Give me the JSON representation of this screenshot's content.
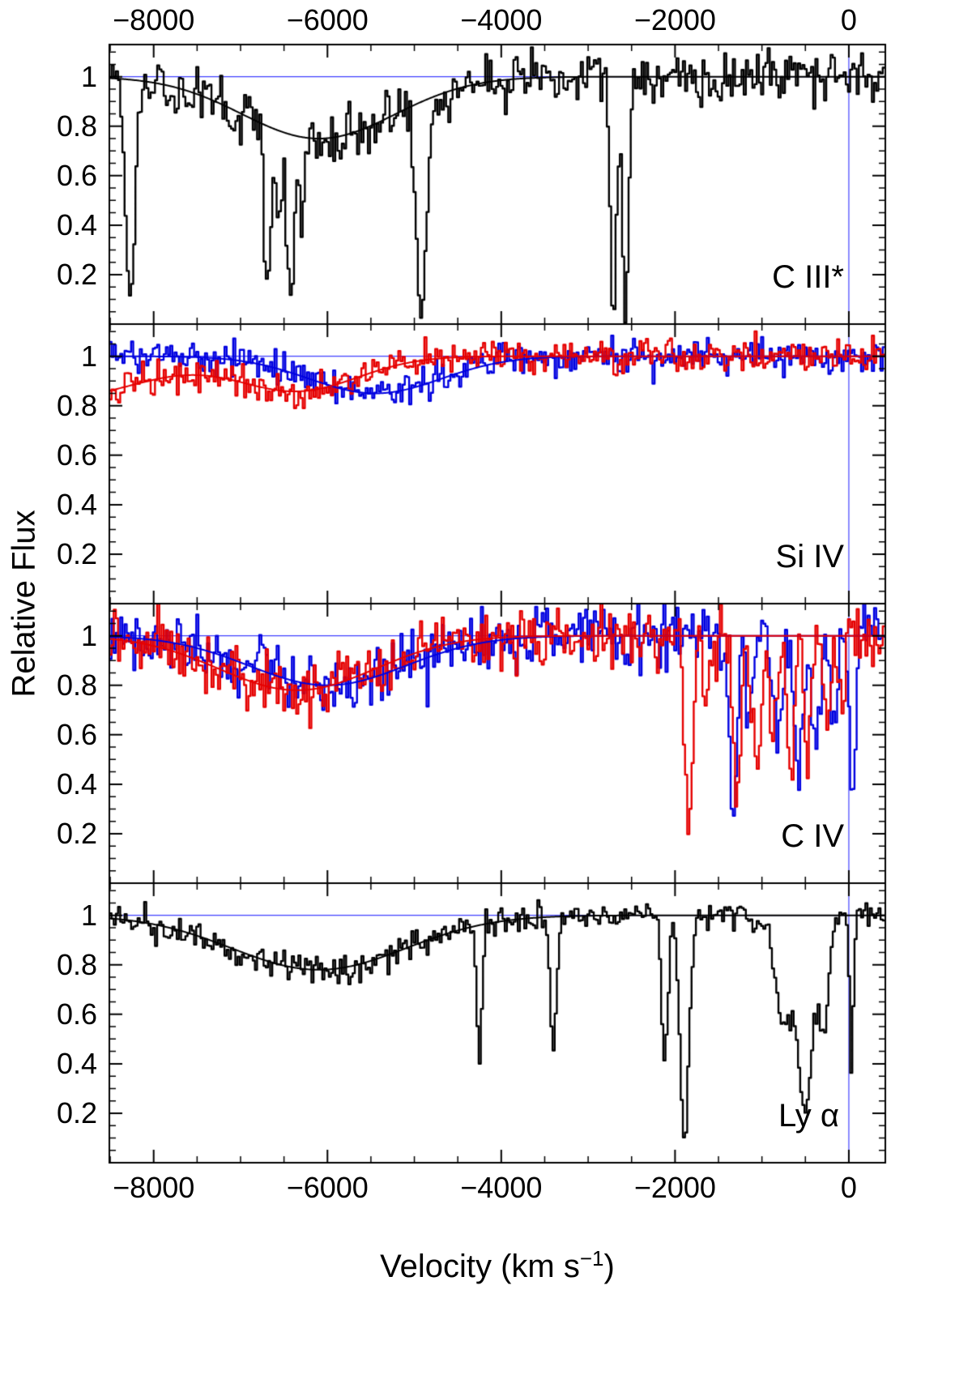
{
  "chart_data": {
    "type": "line",
    "title": "",
    "xlabel": "Velocity (km s⁻¹)",
    "xlabel_prefix": "Velocity (km s",
    "xlabel_sup": "−1",
    "xlabel_suffix": ")",
    "ylabel": "Relative Flux",
    "xlim": [
      -8510,
      420
    ],
    "ylim": [
      0,
      1.13
    ],
    "x_ticks": [
      -8000,
      -6000,
      -4000,
      -2000,
      0
    ],
    "x_tick_labels": [
      "−8000",
      "−6000",
      "−4000",
      "−2000",
      "0"
    ],
    "x_minor_step": 500,
    "y_ticks": [
      0.2,
      0.4,
      0.6,
      0.8,
      1.0
    ],
    "y_tick_labels": [
      "0.2",
      "0.4",
      "0.6",
      "0.8",
      "1"
    ],
    "y_minor_step": 0.05,
    "reference_flux": 1,
    "marker_velocity": 0,
    "grid": false,
    "legend": "none",
    "colors": {
      "reference": "#4040ff",
      "black": "#000000",
      "red": "#e60000",
      "blue": "#0000e0"
    },
    "panels": [
      {
        "label": "C III*",
        "series": [
          {
            "name": "spectrum",
            "color": "#000000",
            "fit_color": "#000000",
            "noise": 0.055,
            "seed": 11,
            "fit_components": [
              {
                "center": -6100,
                "depth": 0.25,
                "sigma": 880
              }
            ],
            "lines": [
              {
                "center": -8270,
                "depth": 0.88,
                "sigma": 55
              },
              {
                "center": -6690,
                "depth": 0.62,
                "sigma": 40
              },
              {
                "center": -6560,
                "depth": 0.3,
                "sigma": 35
              },
              {
                "center": -6420,
                "depth": 0.66,
                "sigma": 45
              },
              {
                "center": -6290,
                "depth": 0.33,
                "sigma": 30
              },
              {
                "center": -4920,
                "depth": 0.88,
                "sigma": 55
              },
              {
                "center": -2710,
                "depth": 1.0,
                "sigma": 35
              },
              {
                "center": -2570,
                "depth": 1.0,
                "sigma": 35
              }
            ]
          }
        ]
      },
      {
        "label": "Si IV",
        "series": [
          {
            "name": "blue-component",
            "color": "#0000e0",
            "fit_color": "#0000e0",
            "noise": 0.034,
            "seed": 21,
            "fit_components": [
              {
                "center": -5450,
                "depth": 0.15,
                "sigma": 760
              }
            ],
            "lines": []
          },
          {
            "name": "red-component",
            "color": "#e60000",
            "fit_color": "#e60000",
            "noise": 0.034,
            "seed": 22,
            "fit_components": [
              {
                "center": -6350,
                "depth": 0.14,
                "sigma": 700
              },
              {
                "center": -9000,
                "depth": 0.16,
                "sigma": 900
              }
            ],
            "lines": []
          }
        ]
      },
      {
        "label": "C IV",
        "series": [
          {
            "name": "blue-component",
            "color": "#0000e0",
            "fit_color": "#0000e0",
            "noise": 0.062,
            "seed": 31,
            "fit_components": [
              {
                "center": -6000,
                "depth": 0.2,
                "sigma": 900
              }
            ],
            "lines": [
              {
                "center": -1330,
                "depth": 0.75,
                "sigma": 40
              },
              {
                "center": -1150,
                "depth": 0.3,
                "sigma": 40
              },
              {
                "center": -820,
                "depth": 0.45,
                "sigma": 55
              },
              {
                "center": -580,
                "depth": 0.62,
                "sigma": 50
              },
              {
                "center": -380,
                "depth": 0.45,
                "sigma": 45
              },
              {
                "center": -170,
                "depth": 0.42,
                "sigma": 40
              },
              {
                "center": 40,
                "depth": 0.64,
                "sigma": 32
              }
            ]
          },
          {
            "name": "red-component",
            "color": "#e60000",
            "fit_color": "#e60000",
            "noise": 0.062,
            "seed": 32,
            "fit_components": [
              {
                "center": -6350,
                "depth": 0.22,
                "sigma": 900
              }
            ],
            "lines": [
              {
                "center": -1840,
                "depth": 0.8,
                "sigma": 40
              },
              {
                "center": -1650,
                "depth": 0.28,
                "sigma": 35
              },
              {
                "center": -1290,
                "depth": 0.7,
                "sigma": 45
              },
              {
                "center": -1060,
                "depth": 0.5,
                "sigma": 55
              },
              {
                "center": -870,
                "depth": 0.42,
                "sigma": 45
              },
              {
                "center": -660,
                "depth": 0.55,
                "sigma": 45
              },
              {
                "center": -470,
                "depth": 0.48,
                "sigma": 40
              },
              {
                "center": -250,
                "depth": 0.32,
                "sigma": 40
              },
              {
                "center": -80,
                "depth": 0.3,
                "sigma": 35
              }
            ]
          }
        ]
      },
      {
        "label": "Ly α",
        "series": [
          {
            "name": "spectrum",
            "color": "#000000",
            "fit_color": "#000000",
            "noise": 0.028,
            "seed": 41,
            "fit_components": [
              {
                "center": -6100,
                "depth": 0.22,
                "sigma": 1000
              }
            ],
            "lines": [
              {
                "center": -4250,
                "depth": 0.52,
                "sigma": 30
              },
              {
                "center": -3400,
                "depth": 0.52,
                "sigma": 40
              },
              {
                "center": -2120,
                "depth": 0.6,
                "sigma": 35
              },
              {
                "center": -1890,
                "depth": 0.93,
                "sigma": 50
              },
              {
                "center": -750,
                "depth": 0.45,
                "sigma": 90
              },
              {
                "center": -500,
                "depth": 0.78,
                "sigma": 85
              },
              {
                "center": -290,
                "depth": 0.45,
                "sigma": 55
              },
              {
                "center": 30,
                "depth": 0.62,
                "sigma": 22
              }
            ]
          }
        ]
      }
    ]
  }
}
